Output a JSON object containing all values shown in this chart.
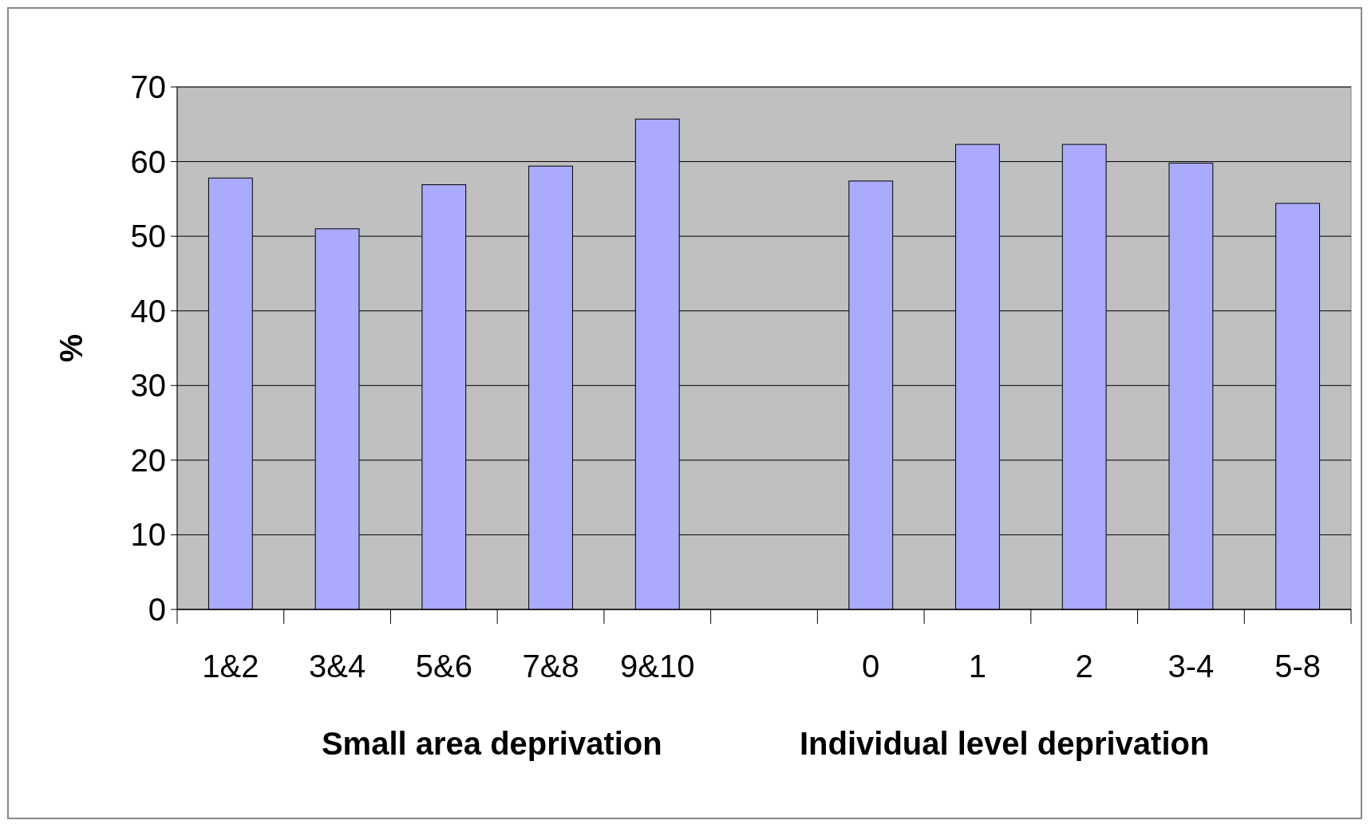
{
  "chart_data": {
    "type": "bar",
    "categories": [
      "1&2",
      "3&4",
      "5&6",
      "7&8",
      "9&10",
      null,
      "0",
      "1",
      "2",
      "3-4",
      "5-8"
    ],
    "values": [
      57.8,
      51.0,
      56.9,
      59.4,
      65.7,
      null,
      57.4,
      62.3,
      62.3,
      59.8,
      54.4
    ],
    "color": "#aaaaff",
    "ylabel": "%",
    "ylim": [
      0,
      70
    ],
    "yticks": [
      0,
      10,
      20,
      30,
      40,
      50,
      60,
      70
    ],
    "grid": "y",
    "annotations": [
      "Small area deprivation",
      "Individual level deprivation"
    ]
  }
}
